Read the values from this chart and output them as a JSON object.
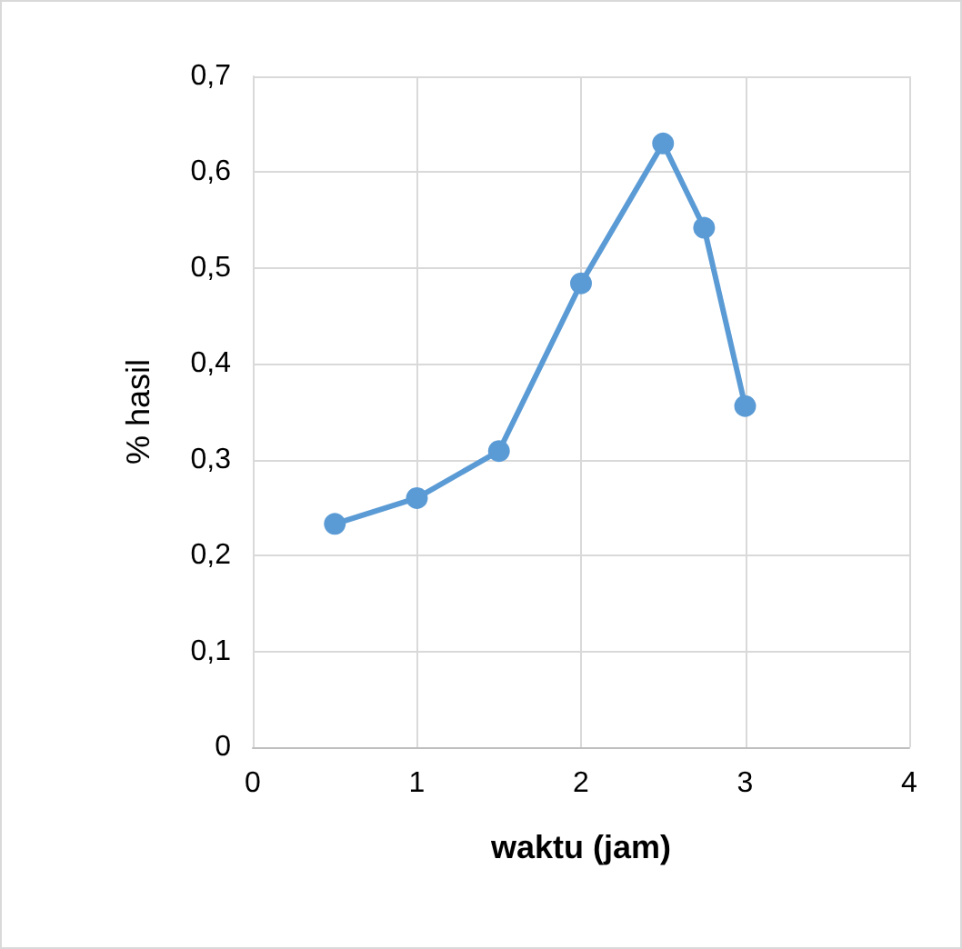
{
  "chart_data": {
    "type": "line",
    "xlabel": "waktu (jam)",
    "ylabel": "% hasil",
    "x": [
      0.5,
      1,
      1.5,
      2,
      2.5,
      2.75,
      3
    ],
    "series": [
      {
        "color": "#5b9bd5",
        "values": [
          0.233,
          0.26,
          0.309,
          0.484,
          0.63,
          0.542,
          0.356
        ]
      }
    ],
    "xlim": [
      0,
      4
    ],
    "xticks": [
      0,
      1,
      2,
      3,
      4
    ],
    "ylim": [
      0,
      0.7
    ],
    "yticks": [
      0,
      {
        "value": 0.1,
        "label": "0,1"
      },
      {
        "value": 0.2,
        "label": "0,2"
      },
      {
        "value": 0.3,
        "label": "0,3"
      },
      {
        "value": 0.4,
        "label": "0,4"
      },
      {
        "value": 0.5,
        "label": "0,5"
      },
      {
        "value": 0.6,
        "label": "0,6"
      },
      {
        "value": 0.7,
        "label": "0,7"
      }
    ],
    "grid": true,
    "marker": "circle",
    "line_style": "solid"
  }
}
